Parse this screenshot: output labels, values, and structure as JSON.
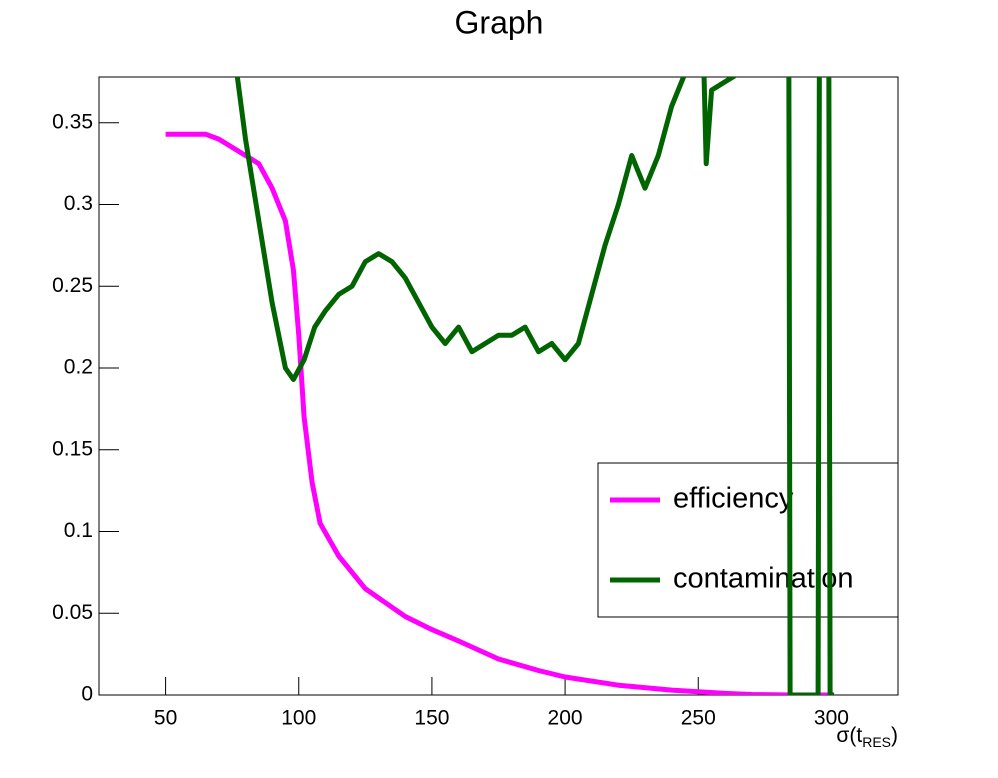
{
  "chart_data": {
    "type": "line",
    "title": "Graph",
    "x_label": {
      "base": "σ(t",
      "subscript": "RES",
      "close": ")"
    },
    "xlim": [
      25,
      325
    ],
    "xticks": [
      50,
      100,
      150,
      200,
      250,
      300
    ],
    "ylim": [
      0,
      0.378
    ],
    "yticks": [
      0,
      0.05,
      0.1,
      0.15,
      0.2,
      0.25,
      0.3,
      0.35
    ],
    "legend": "right",
    "series": [
      {
        "name": "efficiency",
        "color": "#ff00ff",
        "x": [
          50,
          65,
          70,
          80,
          85,
          90,
          95,
          98,
          100,
          102,
          105,
          108,
          115,
          125,
          140,
          150,
          160,
          175,
          190,
          200,
          220,
          240,
          260,
          270,
          285,
          300
        ],
        "values": [
          0.343,
          0.343,
          0.34,
          0.33,
          0.325,
          0.31,
          0.29,
          0.26,
          0.22,
          0.17,
          0.13,
          0.105,
          0.085,
          0.065,
          0.048,
          0.04,
          0.033,
          0.022,
          0.015,
          0.011,
          0.006,
          0.003,
          0.001,
          0.0003,
          0,
          0
        ]
      },
      {
        "name": "contamination",
        "color": "#006400",
        "x": [
          76,
          80,
          85,
          90,
          95,
          98,
          102,
          106,
          110,
          115,
          120,
          125,
          130,
          135,
          140,
          145,
          150,
          155,
          160,
          165,
          170,
          175,
          180,
          185,
          190,
          195,
          200,
          205,
          210,
          215,
          220,
          225,
          230,
          235,
          240,
          245,
          252,
          253,
          255,
          260,
          265,
          284,
          284.5,
          295,
          295.5,
          299,
          299.5,
          301
        ],
        "values": [
          0.39,
          0.34,
          0.29,
          0.24,
          0.2,
          0.193,
          0.205,
          0.225,
          0.235,
          0.245,
          0.25,
          0.265,
          0.27,
          0.265,
          0.255,
          0.24,
          0.225,
          0.215,
          0.225,
          0.21,
          0.215,
          0.22,
          0.22,
          0.225,
          0.21,
          0.215,
          0.205,
          0.215,
          0.245,
          0.275,
          0.3,
          0.33,
          0.31,
          0.33,
          0.36,
          0.38,
          0.39,
          0.325,
          0.37,
          0.375,
          0.38,
          0.4,
          0,
          0,
          0.4,
          0.4,
          0,
          0
        ]
      }
    ]
  }
}
